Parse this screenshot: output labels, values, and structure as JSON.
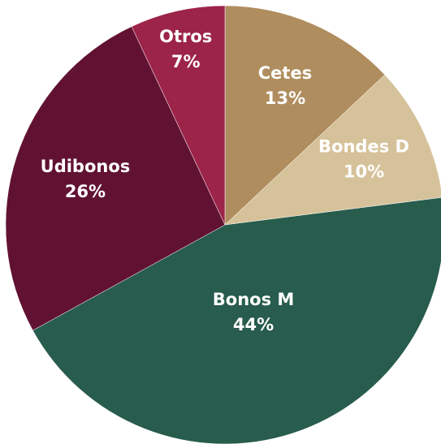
{
  "chart_data": {
    "type": "pie",
    "categories": [
      "Cetes",
      "Bondes D",
      "Bonos M",
      "Udibonos",
      "Otros"
    ],
    "values": [
      13,
      10,
      44,
      26,
      7
    ],
    "value_labels": [
      "13%",
      "10%",
      "44%",
      "26%",
      "7%"
    ],
    "colors": [
      "#b08d5e",
      "#d6c29a",
      "#285c4d",
      "#611232",
      "#9d2449"
    ]
  }
}
